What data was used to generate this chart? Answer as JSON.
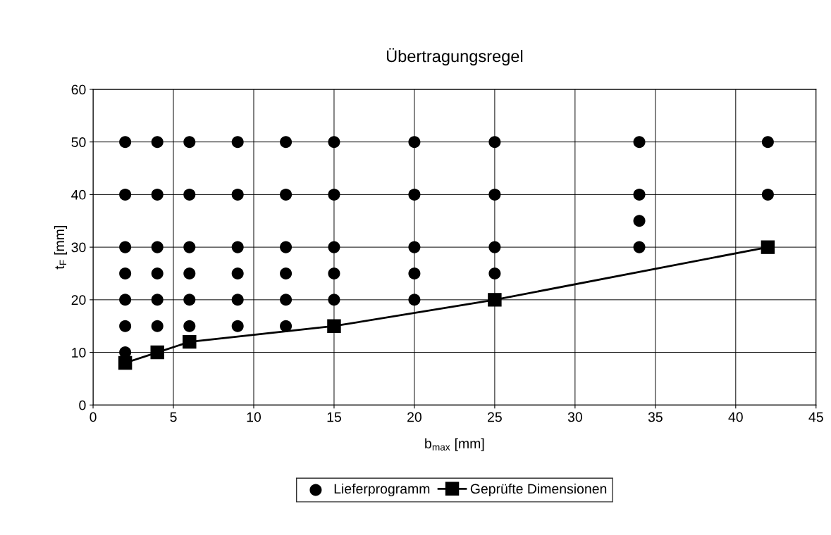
{
  "chart_data": {
    "type": "scatter",
    "title": "Übertragungsregel",
    "xlabel": "b$_{max}$ [mm]",
    "ylabel": "t$_{F}$ [mm]",
    "xlim": [
      0,
      45
    ],
    "xticks": [
      0,
      5,
      10,
      15,
      20,
      25,
      30,
      35,
      40,
      45
    ],
    "ylim": [
      0,
      60
    ],
    "yticks": [
      0,
      10,
      20,
      30,
      40,
      50,
      60
    ],
    "grid": true,
    "legend": "bottom",
    "series": [
      {
        "name": "Lieferprogramm",
        "marker": "circle",
        "color": "#000000",
        "x": [
          2,
          2,
          2,
          2,
          2,
          2,
          2,
          4,
          4,
          4,
          4,
          4,
          4,
          4,
          6,
          6,
          6,
          6,
          6,
          6,
          9,
          9,
          9,
          9,
          9,
          9,
          12,
          12,
          12,
          12,
          12,
          12,
          15,
          15,
          15,
          15,
          15,
          20,
          20,
          20,
          20,
          20,
          25,
          25,
          25,
          25,
          34,
          34,
          34,
          34,
          42,
          42
        ],
        "values": [
          50,
          40,
          30,
          25,
          20,
          15,
          10,
          50,
          40,
          30,
          25,
          20,
          15,
          10,
          50,
          40,
          30,
          25,
          20,
          15,
          50,
          40,
          30,
          25,
          20,
          15,
          50,
          40,
          30,
          25,
          20,
          15,
          50,
          40,
          30,
          25,
          20,
          50,
          40,
          30,
          25,
          20,
          50,
          40,
          30,
          25,
          50,
          40,
          35,
          30,
          50,
          40
        ]
      },
      {
        "name": "Geprüfte Dimensionen",
        "type": "line",
        "marker": "square",
        "line_style": "solid",
        "color": "#000000",
        "x": [
          2,
          4,
          6,
          15,
          25,
          42
        ],
        "values": [
          8,
          10,
          12,
          15,
          20,
          30
        ]
      }
    ]
  }
}
